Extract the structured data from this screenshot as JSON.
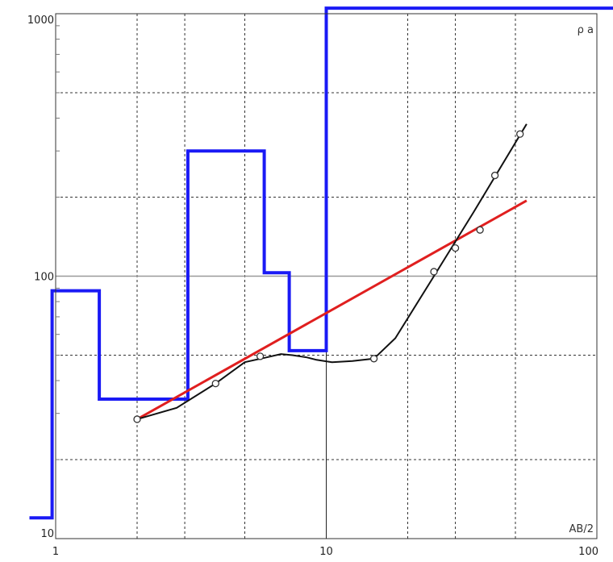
{
  "chart_data": {
    "type": "line",
    "xscale": "log",
    "yscale": "log",
    "xlim": [
      1,
      100
    ],
    "ylim": [
      10,
      1000
    ],
    "grid": true,
    "xticks": [
      {
        "value": 1,
        "label": "1"
      },
      {
        "value": 10,
        "label": "10"
      },
      {
        "value": 100,
        "label": "100"
      }
    ],
    "yticks": [
      {
        "value": 10,
        "label": "10"
      },
      {
        "value": 100,
        "label": "100"
      },
      {
        "value": 1000,
        "label": "1000"
      }
    ],
    "xlabel": "AB/2",
    "ylabel": "ρ a",
    "colors": {
      "model": "#1a1af5",
      "fit": "#e01f1f",
      "measured": "#111111",
      "points": "#333333",
      "grid": "#333333",
      "major_grid": "#999999"
    },
    "series": [
      {
        "role": "layered-model",
        "color": "#1a1af5",
        "step": true,
        "points": [
          [
            0.8,
            12
          ],
          [
            0.97,
            12
          ],
          [
            0.97,
            88
          ],
          [
            1.45,
            88
          ],
          [
            1.45,
            34
          ],
          [
            3.08,
            34
          ],
          [
            3.08,
            300
          ],
          [
            5.9,
            300
          ],
          [
            5.9,
            103
          ],
          [
            7.3,
            103
          ],
          [
            7.3,
            52
          ],
          [
            10.0,
            52
          ],
          [
            10.0,
            1050
          ],
          [
            120,
            1050
          ]
        ]
      },
      {
        "role": "regression-fit",
        "color": "#e01f1f",
        "points": [
          [
            2.0,
            28.5
          ],
          [
            55,
            194
          ]
        ]
      },
      {
        "role": "measured-curve",
        "color": "#111111",
        "points": [
          [
            2.0,
            28.5
          ],
          [
            2.8,
            31.5
          ],
          [
            3.9,
            39
          ],
          [
            5.0,
            47
          ],
          [
            6.0,
            49
          ],
          [
            6.8,
            50.5
          ],
          [
            7.5,
            50
          ],
          [
            8.5,
            49
          ],
          [
            9.2,
            48
          ],
          [
            10.5,
            47
          ],
          [
            12.5,
            47.5
          ],
          [
            15.0,
            48.5
          ],
          [
            18.0,
            58
          ],
          [
            25.0,
            100
          ],
          [
            35.0,
            175
          ],
          [
            55.0,
            380
          ]
        ]
      },
      {
        "role": "observations",
        "color": "#333333",
        "marker": "circle",
        "points": [
          [
            2.0,
            28.5
          ],
          [
            3.9,
            39
          ],
          [
            5.7,
            49.5
          ],
          [
            15.0,
            48.5
          ],
          [
            25.0,
            104
          ],
          [
            30.0,
            128
          ],
          [
            37.0,
            150
          ],
          [
            42.0,
            242
          ],
          [
            52.0,
            348
          ]
        ]
      }
    ]
  }
}
